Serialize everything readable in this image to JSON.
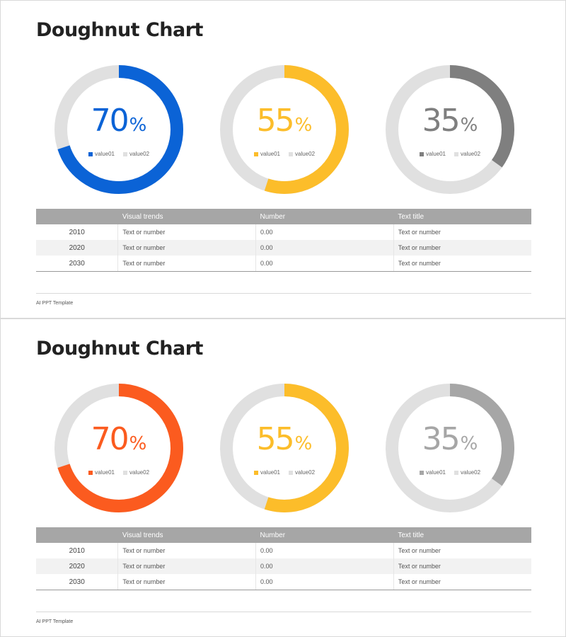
{
  "slides": [
    {
      "title": "Doughnut Chart",
      "table": {
        "headers": [
          "",
          "Visual trends",
          "Number",
          "Text title"
        ],
        "rows": [
          [
            "2010",
            "Text or number",
            "0.00",
            "Text or number"
          ],
          [
            "2020",
            "Text or number",
            "0.00",
            "Text or number"
          ],
          [
            "2030",
            "Text or number",
            "0.00",
            "Text or number"
          ]
        ]
      },
      "footer": "AI PPT Template"
    },
    {
      "title": "Doughnut Chart",
      "table": {
        "headers": [
          "",
          "Visual trends",
          "Number",
          "Text title"
        ],
        "rows": [
          [
            "2010",
            "Text or number",
            "0.00",
            "Text or number"
          ],
          [
            "2020",
            "Text or number",
            "0.00",
            "Text or number"
          ],
          [
            "2030",
            "Text or number",
            "0.00",
            "Text or number"
          ]
        ]
      },
      "footer": "AI PPT Template"
    }
  ],
  "chart_data": [
    {
      "type": "pie",
      "donut": true,
      "display_value": "70",
      "unit": "%",
      "labels": [
        "value01",
        "value02"
      ],
      "values": [
        70,
        30
      ],
      "colors": [
        "#0b63d6",
        "#e0e0e0"
      ]
    },
    {
      "type": "pie",
      "donut": true,
      "display_value": "55",
      "unit": "%",
      "labels": [
        "value01",
        "value02"
      ],
      "values": [
        55,
        45
      ],
      "colors": [
        "#fcbd2a",
        "#e0e0e0"
      ]
    },
    {
      "type": "pie",
      "donut": true,
      "display_value": "35",
      "unit": "%",
      "labels": [
        "value01",
        "value02"
      ],
      "values": [
        35,
        65
      ],
      "colors": [
        "#7f7f7f",
        "#e0e0e0"
      ]
    },
    {
      "type": "pie",
      "donut": true,
      "display_value": "70",
      "unit": "%",
      "labels": [
        "value01",
        "value02"
      ],
      "values": [
        70,
        30
      ],
      "colors": [
        "#fb5b1f",
        "#e0e0e0"
      ]
    },
    {
      "type": "pie",
      "donut": true,
      "display_value": "55",
      "unit": "%",
      "labels": [
        "value01",
        "value02"
      ],
      "values": [
        55,
        45
      ],
      "colors": [
        "#fcbd2a",
        "#e0e0e0"
      ]
    },
    {
      "type": "pie",
      "donut": true,
      "display_value": "35",
      "unit": "%",
      "labels": [
        "value01",
        "value02"
      ],
      "values": [
        35,
        65
      ],
      "colors": [
        "#a6a6a6",
        "#e0e0e0"
      ]
    }
  ]
}
